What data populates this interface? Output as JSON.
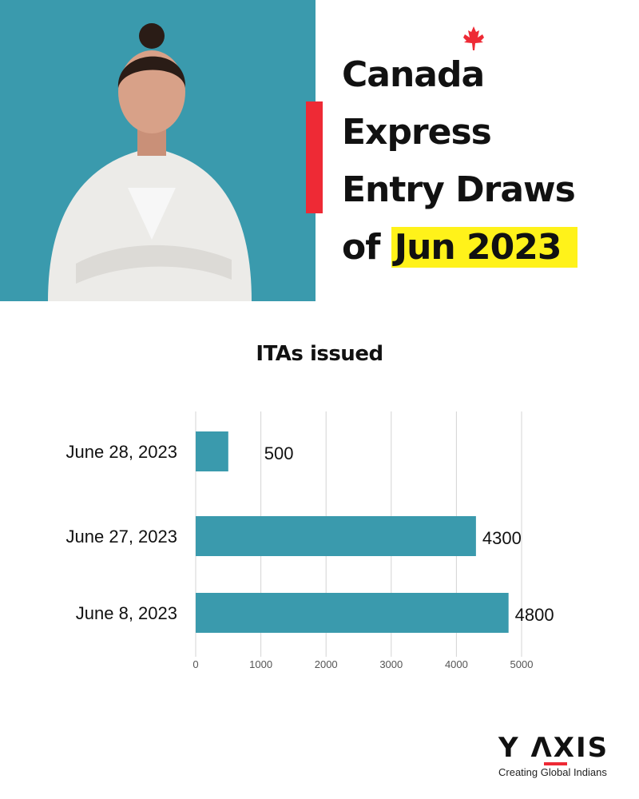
{
  "header": {
    "title_lines": [
      "Canada",
      "Express",
      "Entry Draws",
      "of"
    ],
    "title_highlight": "Jun 2023",
    "accent_color": "#ee2a35",
    "highlight_color": "#fff21a",
    "photo_bg_color": "#3a9aad"
  },
  "chart_data": {
    "type": "bar",
    "orientation": "horizontal",
    "title": "ITAs issued",
    "categories": [
      "June 28, 2023",
      "June 27, 2023",
      "June 8, 2023"
    ],
    "values": [
      500,
      4300,
      4800
    ],
    "data_labels": [
      "500",
      "4300",
      "4800"
    ],
    "xlim": [
      0,
      5000
    ],
    "xticks": [
      "0",
      "1000",
      "2000",
      "3000",
      "4000",
      "5000"
    ],
    "xlabel": "",
    "ylabel": "",
    "grid": "vertical",
    "bar_color": "#3a9aad"
  },
  "logo": {
    "brand": "Y ΛXIS",
    "tagline": "Creating Global Indians"
  }
}
